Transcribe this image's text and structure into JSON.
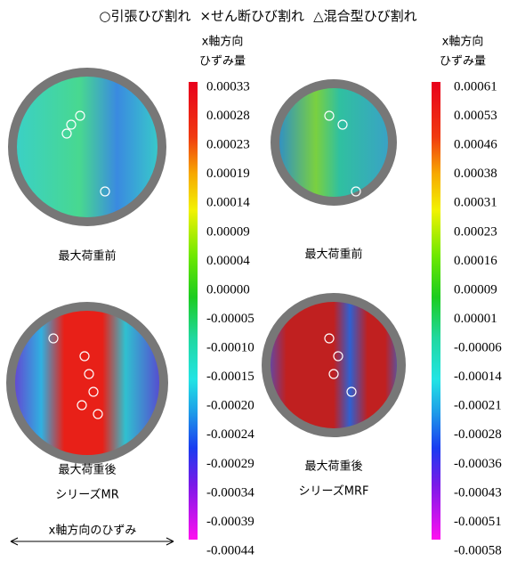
{
  "legend": [
    "○引張ひび割れ",
    "×せん断ひび割れ",
    "△混合型ひび割れ"
  ],
  "colorbars": [
    {
      "title": [
        "x軸方向",
        "ひずみ量"
      ],
      "labels": [
        "0.00033",
        "0.00028",
        "0.00023",
        "0.00019",
        "0.00014",
        "0.00009",
        "0.00004",
        "0.00000",
        "-0.00005",
        "-0.00010",
        "-0.00015",
        "-0.00020",
        "-0.00024",
        "-0.00029",
        "-0.00034",
        "-0.00039",
        "-0.00044"
      ]
    },
    {
      "title": [
        "x軸方向",
        "ひずみ量"
      ],
      "labels": [
        "0.00061",
        "0.00053",
        "0.00046",
        "0.00038",
        "0.00031",
        "0.00023",
        "0.00016",
        "0.00009",
        "0.00001",
        "-0.00006",
        "-0.00014",
        "-0.00021",
        "-0.00028",
        "-0.00036",
        "-0.00043",
        "-0.00051",
        "-0.00058"
      ]
    }
  ],
  "panels": [
    {
      "label": "最大荷重前"
    },
    {
      "label": "最大荷重前"
    },
    {
      "label": "最大荷重後"
    },
    {
      "label": "最大荷重後"
    }
  ],
  "series": [
    "シリーズMR",
    "シリーズMRF"
  ],
  "axis_note": "x軸方向のひずみ"
}
